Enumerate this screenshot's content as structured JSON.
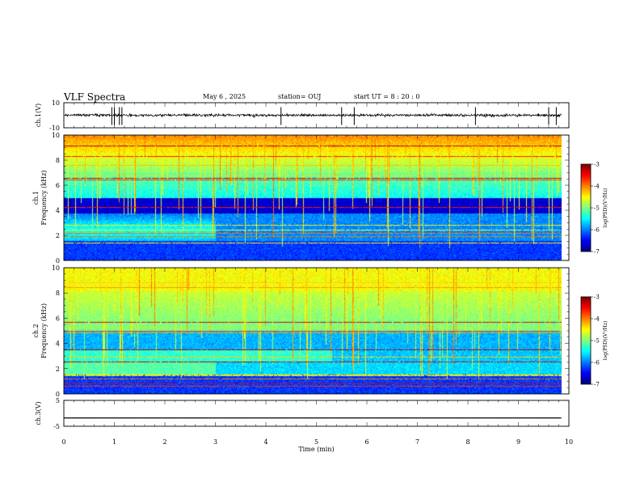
{
  "header": {
    "title": "VLF Spectra",
    "date": "May 6 , 2025",
    "station": "station= OUJ",
    "start": "start UT = 8 : 20 : 0"
  },
  "chart_data": {
    "type": "heatmap",
    "xlabel": "Time (min)",
    "xlim": [
      0,
      10
    ],
    "xticks": [
      "0",
      "1",
      "2",
      "3",
      "4",
      "5",
      "6",
      "7",
      "8",
      "9",
      "10"
    ],
    "data_end_min": 9.85,
    "waveform_ch1": {
      "ylabel": "ch.1(V)",
      "ylim": [
        -10,
        10
      ],
      "yticks": [
        "10",
        "-10"
      ],
      "baseline": 0,
      "spike_times_min": [
        0.95,
        1.0,
        1.1,
        1.15,
        4.3,
        5.5,
        5.75,
        8.15,
        9.6,
        9.75
      ]
    },
    "spectrogram_ch1": {
      "ylabel_1": "ch.1",
      "ylabel_2": "Frequency (kHz)",
      "ylim": [
        0,
        10
      ],
      "yticks": [
        "0",
        "2",
        "4",
        "6",
        "8",
        "10"
      ],
      "colorbar": {
        "label": "log(PSD)(V²/Hz)",
        "range": [
          -7,
          -3
        ],
        "ticks": [
          "-3",
          "-4",
          "-5",
          "-6",
          "-7"
        ]
      }
    },
    "spectrogram_ch2": {
      "ylabel_1": "ch.2",
      "ylabel_2": "Frequency (kHz)",
      "ylim": [
        0,
        10
      ],
      "yticks": [
        "0",
        "2",
        "4",
        "6",
        "8",
        "10"
      ],
      "colorbar": {
        "label": "log(PSD)(V²/Hz)",
        "range": [
          -7,
          -3
        ],
        "ticks": [
          "-3",
          "-4",
          "-5",
          "-6",
          "-7"
        ]
      }
    },
    "waveform_ch3": {
      "ylabel": "ch.3(V)",
      "ylim": [
        -5,
        5
      ],
      "yticks": [
        "5",
        "-5"
      ],
      "level": -1.8
    }
  }
}
